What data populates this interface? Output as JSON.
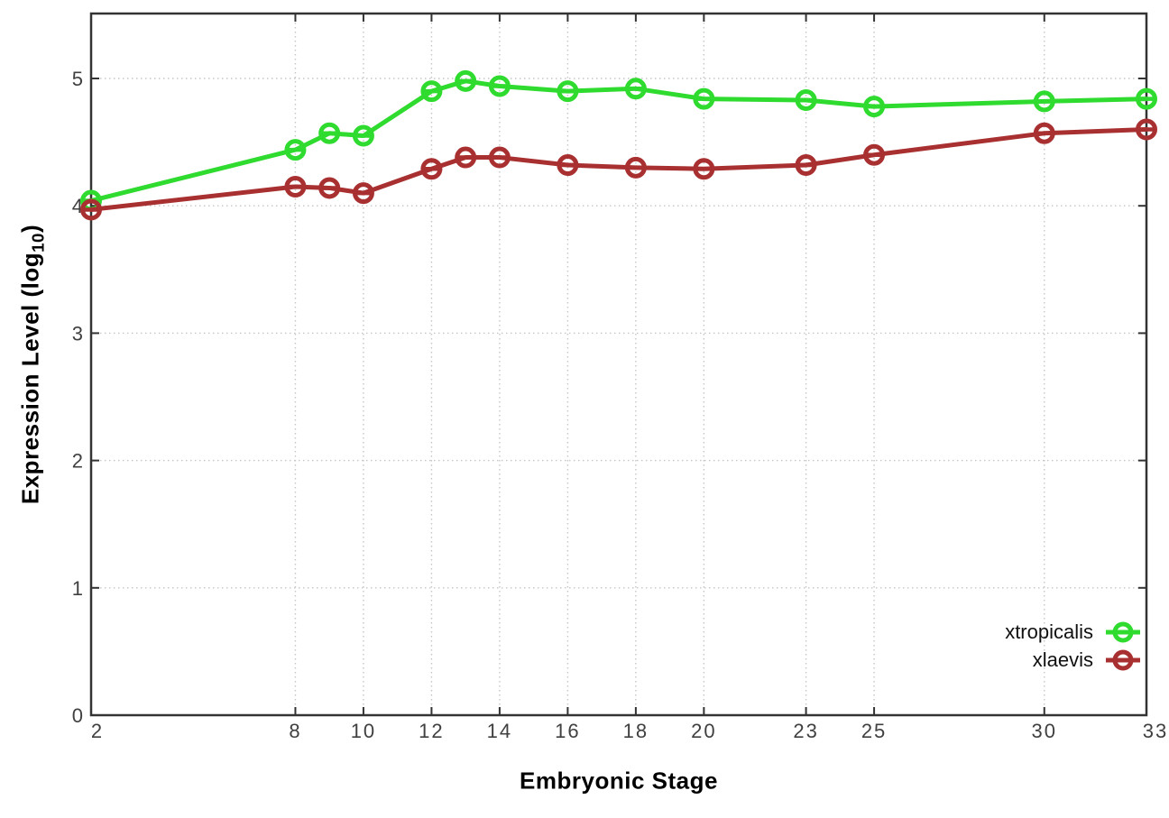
{
  "chart_data": {
    "type": "line",
    "title": "",
    "xlabel": "Embryonic Stage",
    "ylabel": "Expression Level (log10)",
    "ylabel_parts": {
      "main": "Expression Level (log",
      "sub": "10",
      "end": ")"
    },
    "x": [
      2,
      8,
      9,
      10,
      12,
      13,
      14,
      16,
      18,
      20,
      23,
      25,
      30,
      33
    ],
    "series": [
      {
        "name": "xtropicalis",
        "color": "#2EDB2E",
        "values": [
          4.04,
          4.44,
          4.57,
          4.55,
          4.9,
          4.98,
          4.94,
          4.9,
          4.92,
          4.84,
          4.83,
          4.78,
          4.82,
          4.84
        ]
      },
      {
        "name": "xlaevis",
        "color": "#A93030",
        "values": [
          3.97,
          4.15,
          4.14,
          4.1,
          4.29,
          4.38,
          4.38,
          4.32,
          4.3,
          4.29,
          4.32,
          4.4,
          4.57,
          4.6
        ]
      }
    ],
    "xticks": [
      2,
      8,
      10,
      12,
      14,
      16,
      18,
      20,
      23,
      25,
      30,
      33
    ],
    "yticks": [
      0,
      1,
      2,
      3,
      4,
      5
    ],
    "xlim": [
      2,
      33
    ],
    "ylim": [
      0,
      5.51
    ],
    "grid": true,
    "grid_style": "dotted",
    "legend_position": "inside-bottom-right",
    "marker": "open-circle-with-error-caps",
    "colors": {
      "axis": "#333333",
      "grid": "#c6c6c6",
      "tick_label": "#404040",
      "background": "#ffffff"
    }
  }
}
